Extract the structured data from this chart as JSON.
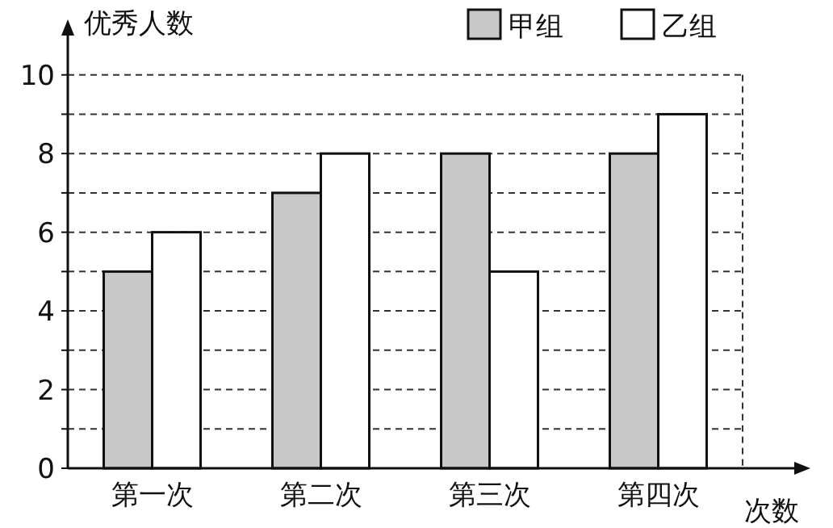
{
  "chart_data": {
    "type": "bar",
    "xlabel": "次数",
    "ylabel": "优秀人数",
    "categories": [
      "第一次",
      "第二次",
      "第三次",
      "第四次"
    ],
    "series": [
      {
        "name": "甲组",
        "color": "#c8c8c8",
        "values": [
          5,
          7,
          8,
          8
        ]
      },
      {
        "name": "乙组",
        "color": "#ffffff",
        "values": [
          6,
          8,
          5,
          9
        ]
      }
    ],
    "ylim": [
      0,
      11
    ],
    "yticks": [
      0,
      {
        "value": 1,
        "label": null
      },
      2,
      {
        "value": 3,
        "label": null
      },
      4,
      {
        "value": 5,
        "label": null
      },
      6,
      {
        "value": 7,
        "label": null
      },
      8,
      {
        "value": 9,
        "label": null
      },
      10
    ],
    "grid": "y",
    "legend": "top right"
  }
}
